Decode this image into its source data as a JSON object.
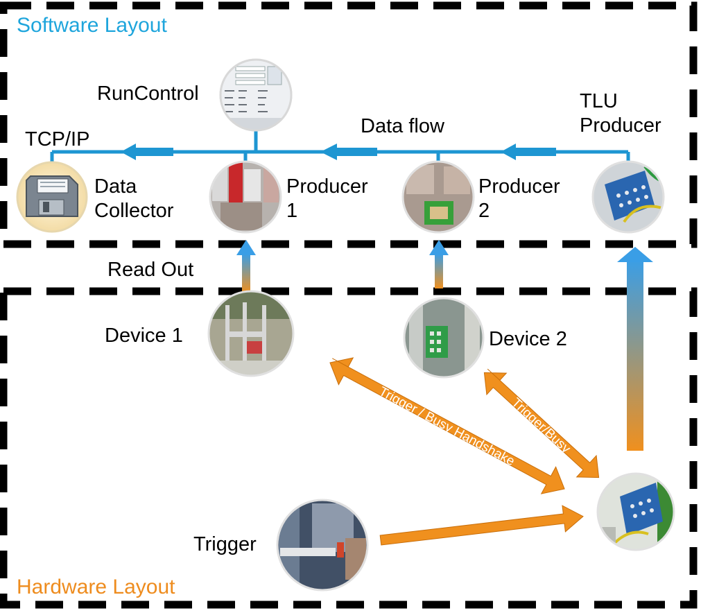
{
  "software_layout": {
    "title": "Software Layout",
    "run_control": "RunControl",
    "tcp_ip": "TCP/IP",
    "data_flow": "Data flow",
    "data_collector": [
      "Data",
      "Collector"
    ],
    "producer1": [
      "Producer",
      "1"
    ],
    "producer2": [
      "Producer",
      "2"
    ],
    "tlu_producer": [
      "TLU",
      "Producer"
    ]
  },
  "hardware_layout": {
    "title": "Hardware Layout",
    "read_out": "Read Out",
    "device1": "Device 1",
    "device2": "Device 2",
    "trigger": "Trigger",
    "handshake_label": "Trigger / Busy Handshake",
    "trigger_busy_label": "Trigger/Busy"
  },
  "colors": {
    "software_accent": "#1ea5dc",
    "hardware_accent": "#ee8c1e",
    "bus": "#1e96d2"
  }
}
